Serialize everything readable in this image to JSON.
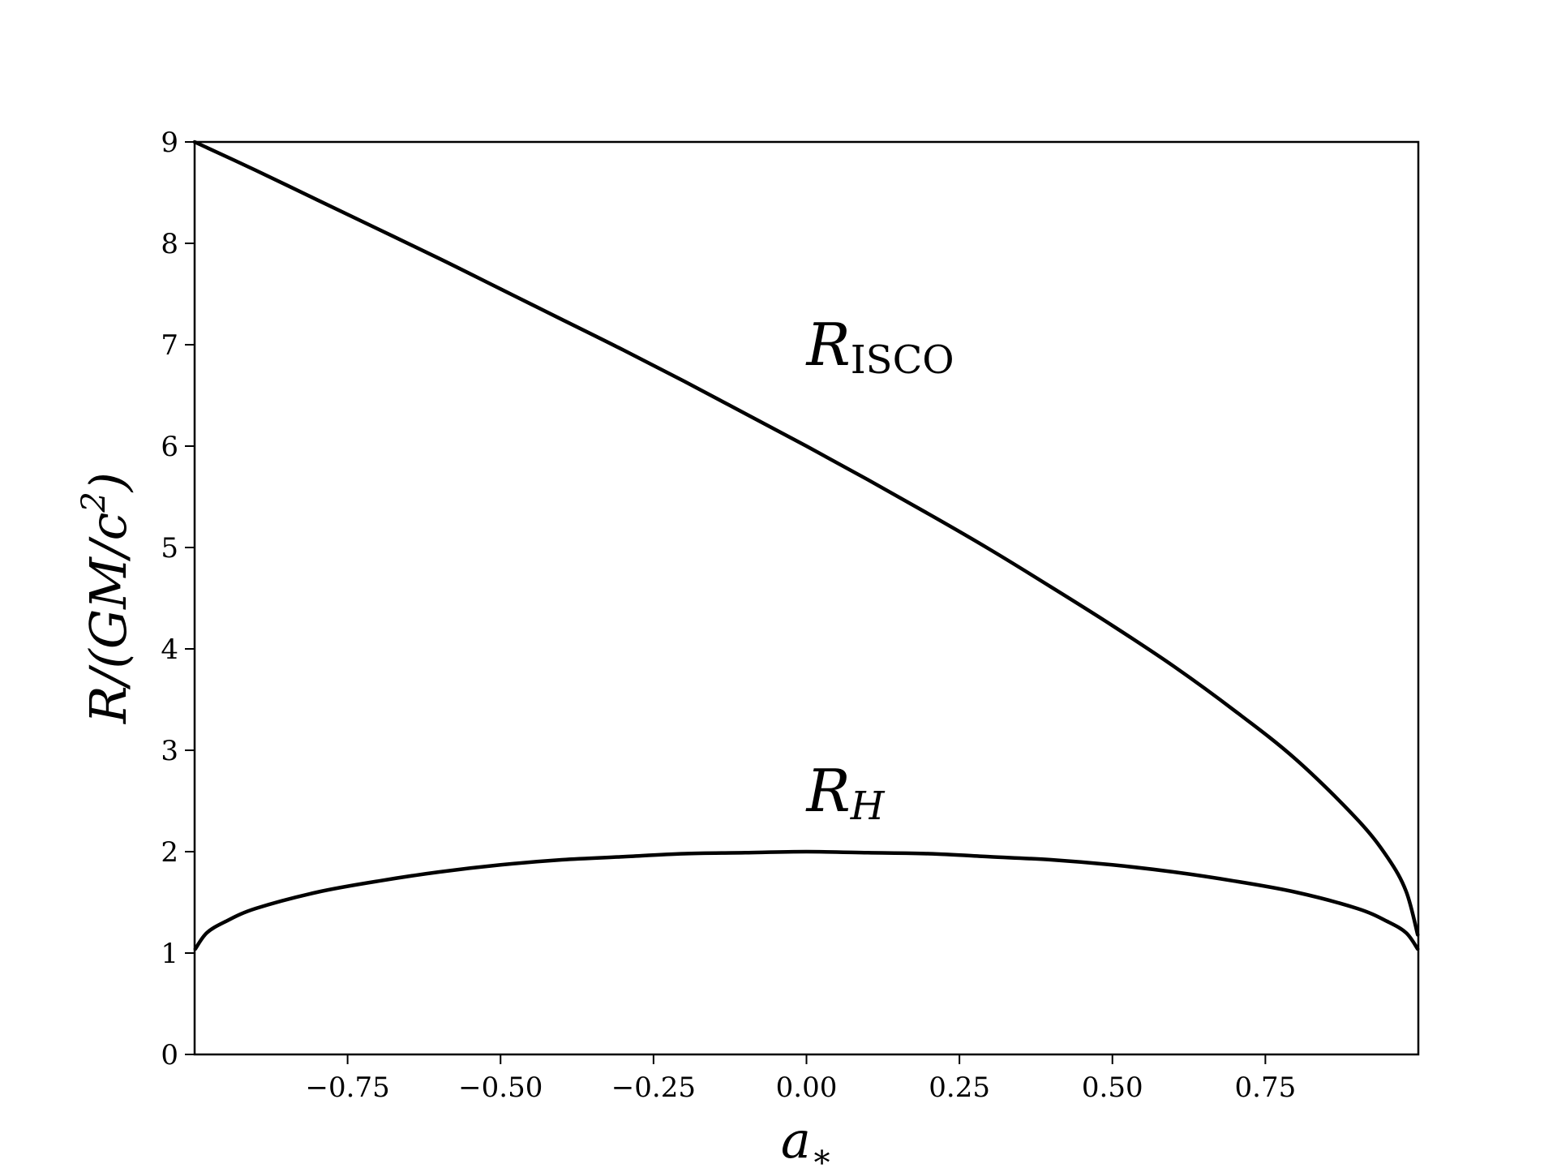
{
  "chart_data": {
    "type": "line",
    "title": "",
    "xlim": [
      -1.0,
      1.0
    ],
    "ylim": [
      0,
      9
    ],
    "xticks": [
      -0.75,
      -0.5,
      -0.25,
      0.0,
      0.25,
      0.5,
      0.75
    ],
    "xtick_labels": [
      "−0.75",
      "−0.50",
      "−0.25",
      "0.00",
      "0.25",
      "0.50",
      "0.75"
    ],
    "yticks": [
      0,
      1,
      2,
      3,
      4,
      5,
      6,
      7,
      8,
      9
    ],
    "ytick_labels": [
      "0",
      "1",
      "2",
      "3",
      "4",
      "5",
      "6",
      "7",
      "8",
      "9"
    ],
    "xlabel": {
      "base": "a",
      "sub": "∗"
    },
    "ylabel": {
      "pre": "R/(GM/c",
      "sup": "2",
      "post": ")"
    },
    "grid": false,
    "legend": "none",
    "line_color": "#000000",
    "series": [
      {
        "annotation": {
          "base": "R",
          "sub": "ISCO",
          "at": [
            0.0,
            6.8
          ]
        },
        "x": [
          -1.0,
          -0.9,
          -0.8,
          -0.7,
          -0.6,
          -0.5,
          -0.4,
          -0.3,
          -0.2,
          -0.1,
          0.0,
          0.1,
          0.2,
          0.3,
          0.4,
          0.5,
          0.6,
          0.7,
          0.8,
          0.9,
          0.95,
          0.98,
          0.999
        ],
        "y": [
          9.0,
          8.72,
          8.43,
          8.14,
          7.85,
          7.55,
          7.25,
          6.95,
          6.64,
          6.32,
          6.0,
          5.67,
          5.33,
          4.98,
          4.61,
          4.23,
          3.83,
          3.39,
          2.91,
          2.32,
          1.94,
          1.61,
          1.18
        ]
      },
      {
        "annotation": {
          "base": "R",
          "sub": "H",
          "at": [
            0.0,
            2.4
          ]
        },
        "x": [
          -0.999,
          -0.98,
          -0.95,
          -0.9,
          -0.8,
          -0.7,
          -0.6,
          -0.5,
          -0.4,
          -0.3,
          -0.2,
          -0.1,
          0.0,
          0.1,
          0.2,
          0.3,
          0.4,
          0.5,
          0.6,
          0.7,
          0.8,
          0.9,
          0.95,
          0.98,
          0.999
        ],
        "y": [
          1.04,
          1.2,
          1.31,
          1.44,
          1.6,
          1.71,
          1.8,
          1.87,
          1.92,
          1.95,
          1.98,
          1.99,
          2.0,
          1.99,
          1.98,
          1.95,
          1.92,
          1.87,
          1.8,
          1.71,
          1.6,
          1.44,
          1.31,
          1.2,
          1.04
        ]
      }
    ]
  }
}
